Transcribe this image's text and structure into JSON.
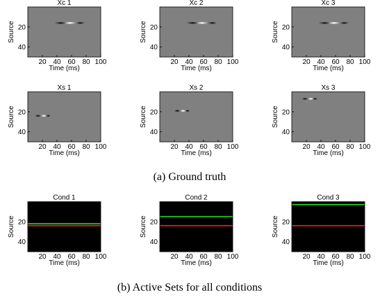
{
  "chart_data": [
    {
      "type": "heatmap",
      "title": "Xc 1",
      "xlabel": "Time (ms)",
      "ylabel": "Source",
      "xlim": [
        0,
        100
      ],
      "ylim": [
        50,
        0
      ],
      "xticks": [
        "20",
        "40",
        "60",
        "80",
        "100"
      ],
      "yticks": [
        "20",
        "40"
      ],
      "background": "gray",
      "blobs": [
        {
          "source": 16,
          "time": 45,
          "polarity": "dark",
          "len": 16
        },
        {
          "source": 16,
          "time": 58,
          "polarity": "light",
          "len": 16
        },
        {
          "source": 16,
          "time": 72,
          "polarity": "dark",
          "len": 12
        }
      ]
    },
    {
      "type": "heatmap",
      "title": "Xc 2",
      "xlabel": "Time (ms)",
      "ylabel": "Source",
      "xlim": [
        0,
        100
      ],
      "ylim": [
        50,
        0
      ],
      "xticks": [
        "20",
        "40",
        "60",
        "80",
        "100"
      ],
      "yticks": [
        "20",
        "40"
      ],
      "background": "gray",
      "blobs": [
        {
          "source": 16,
          "time": 45,
          "polarity": "dark",
          "len": 16
        },
        {
          "source": 16,
          "time": 58,
          "polarity": "light",
          "len": 16
        },
        {
          "source": 16,
          "time": 72,
          "polarity": "dark",
          "len": 12
        }
      ]
    },
    {
      "type": "heatmap",
      "title": "Xc 3",
      "xlabel": "Time (ms)",
      "ylabel": "Source",
      "xlim": [
        0,
        100
      ],
      "ylim": [
        50,
        0
      ],
      "xticks": [
        "20",
        "40",
        "60",
        "80",
        "100"
      ],
      "yticks": [
        "20",
        "40"
      ],
      "background": "gray",
      "blobs": [
        {
          "source": 16,
          "time": 45,
          "polarity": "dark",
          "len": 16
        },
        {
          "source": 16,
          "time": 58,
          "polarity": "light",
          "len": 16
        },
        {
          "source": 16,
          "time": 72,
          "polarity": "dark",
          "len": 12
        }
      ]
    },
    {
      "type": "heatmap",
      "title": "Xs 1",
      "xlabel": "Time (ms)",
      "ylabel": "Source",
      "xlim": [
        0,
        100
      ],
      "ylim": [
        50,
        0
      ],
      "xticks": [
        "20",
        "40",
        "60",
        "80",
        "100"
      ],
      "yticks": [
        "20",
        "40"
      ],
      "background": "gray",
      "blobs": [
        {
          "source": 24,
          "time": 14,
          "polarity": "dark",
          "len": 8
        },
        {
          "source": 24,
          "time": 22,
          "polarity": "light",
          "len": 8
        },
        {
          "source": 24,
          "time": 28,
          "polarity": "dark",
          "len": 6
        }
      ]
    },
    {
      "type": "heatmap",
      "title": "Xs 2",
      "xlabel": "Time (ms)",
      "ylabel": "Source",
      "xlim": [
        0,
        100
      ],
      "ylim": [
        50,
        0
      ],
      "xticks": [
        "20",
        "40",
        "60",
        "80",
        "100"
      ],
      "yticks": [
        "20",
        "40"
      ],
      "background": "gray",
      "blobs": [
        {
          "source": 19,
          "time": 24,
          "polarity": "dark",
          "len": 8
        },
        {
          "source": 19,
          "time": 32,
          "polarity": "light",
          "len": 8
        },
        {
          "source": 19,
          "time": 38,
          "polarity": "dark",
          "len": 6
        }
      ]
    },
    {
      "type": "heatmap",
      "title": "Xs 3",
      "xlabel": "Time (ms)",
      "ylabel": "Source",
      "xlim": [
        0,
        100
      ],
      "ylim": [
        50,
        0
      ],
      "xticks": [
        "20",
        "40",
        "60",
        "80",
        "100"
      ],
      "yticks": [
        "20",
        "40"
      ],
      "background": "gray",
      "blobs": [
        {
          "source": 7,
          "time": 18,
          "polarity": "dark",
          "len": 8
        },
        {
          "source": 7,
          "time": 26,
          "polarity": "light",
          "len": 8
        },
        {
          "source": 7,
          "time": 32,
          "polarity": "dark",
          "len": 6
        }
      ]
    },
    {
      "type": "line",
      "title": "Cond 1",
      "xlabel": "Time (ms)",
      "ylabel": "Source",
      "xlim": [
        0,
        100
      ],
      "ylim": [
        50,
        0
      ],
      "xticks": [
        "20",
        "40",
        "60",
        "80",
        "100"
      ],
      "yticks": [
        "20",
        "40"
      ],
      "background": "black",
      "series": [
        {
          "color": "#ff2020",
          "source": 24
        },
        {
          "color": "#20e020",
          "source": 22
        }
      ]
    },
    {
      "type": "line",
      "title": "Cond 2",
      "xlabel": "Time (ms)",
      "ylabel": "Source",
      "xlim": [
        0,
        100
      ],
      "ylim": [
        50,
        0
      ],
      "xticks": [
        "20",
        "40",
        "60",
        "80",
        "100"
      ],
      "yticks": [
        "20",
        "40"
      ],
      "background": "black",
      "series": [
        {
          "color": "#ff2020",
          "source": 24
        },
        {
          "color": "#20e020",
          "source": 15
        }
      ]
    },
    {
      "type": "line",
      "title": "Cond 3",
      "xlabel": "Time (ms)",
      "ylabel": "Source",
      "xlim": [
        0,
        100
      ],
      "ylim": [
        50,
        0
      ],
      "xticks": [
        "20",
        "40",
        "60",
        "80",
        "100"
      ],
      "yticks": [
        "20",
        "40"
      ],
      "background": "black",
      "series": [
        {
          "color": "#ff2020",
          "source": 24
        },
        {
          "color": "#20e020",
          "source": 3
        }
      ]
    }
  ],
  "captions": {
    "a": "(a)  Ground truth",
    "b": "(b)  Active Sets for all conditions"
  },
  "colors": {
    "gray": "#808080",
    "black": "#000000",
    "dark": "#151515",
    "light": "#ffffff"
  }
}
